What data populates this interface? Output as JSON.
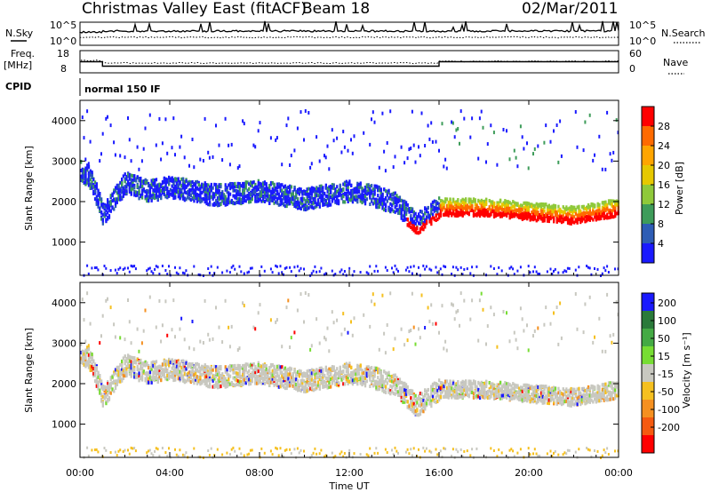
{
  "header": {
    "title": "Christmas Valley East (fitACF)",
    "beam": "Beam 18",
    "date": "02/Mar/2011"
  },
  "top_panels": {
    "nsky_label": "N.Sky",
    "nsearch_label": "N.Search",
    "noise_ticks_left": [
      "10^5",
      "10^0"
    ],
    "noise_ticks_right": [
      "10^5",
      "10^0"
    ],
    "freq_label": "Freq.",
    "freq_unit": "[MHz]",
    "freq_ticks": [
      "18",
      "8"
    ],
    "nave_label": "Nave",
    "nave_ticks": [
      "60",
      "0"
    ],
    "cpid_label": "CPID",
    "cpid_value": "normal 150 IF"
  },
  "panel_power": {
    "ylabel": "Slant Range [km]",
    "yticks": [
      "4000",
      "3000",
      "2000",
      "1000"
    ],
    "colorbar_label": "Power [dB]",
    "colorbar_ticks": [
      "28",
      "24",
      "20",
      "16",
      "12",
      "8",
      "4"
    ],
    "colors": [
      "#ff0000",
      "#ff6a00",
      "#ffa500",
      "#e6c800",
      "#8fc93a",
      "#3e9c5a",
      "#2e5db5",
      "#1a1aff"
    ]
  },
  "panel_velocity": {
    "ylabel": "Slant Range [km]",
    "yticks": [
      "4000",
      "3000",
      "2000",
      "1000"
    ],
    "colorbar_label": "Velocity [m s⁻¹]",
    "colorbar_ticks": [
      "200",
      "100",
      "50",
      "15",
      "-15",
      "-50",
      "-100",
      "-200"
    ],
    "colors": [
      "#1a1aff",
      "#2a7a3a",
      "#44aa44",
      "#77dd33",
      "#c8c8c0",
      "#f5c020",
      "#f59020",
      "#f55a10",
      "#ff0000"
    ]
  },
  "x_axis": {
    "label": "Time UT",
    "ticks": [
      "00:00",
      "04:00",
      "08:00",
      "12:00",
      "16:00",
      "20:00",
      "00:00"
    ]
  },
  "chart_data": [
    {
      "type": "line",
      "title": "Freq. [MHz]",
      "x_label": "Time UT",
      "x": [
        0,
        1,
        1,
        16,
        16,
        24
      ],
      "series": [
        {
          "name": "Freq.",
          "values": [
            13,
            13,
            11,
            11,
            13,
            13
          ]
        }
      ],
      "ylim": [
        8,
        18
      ]
    },
    {
      "type": "heatmap",
      "title": "Power [dB]",
      "xlabel": "Time UT",
      "ylabel": "Slant Range [km]",
      "xlim": [
        0,
        24
      ],
      "ylim": [
        180,
        4500
      ],
      "clim": [
        0,
        30
      ],
      "echo_band_center_km": {
        "x": [
          0,
          0.5,
          1,
          1.5,
          2,
          3,
          4,
          6,
          8,
          10,
          12,
          13,
          14,
          15,
          16,
          18,
          20,
          22,
          24
        ],
        "y": [
          2800,
          2600,
          1700,
          2100,
          2500,
          2300,
          2400,
          2200,
          2300,
          2100,
          2300,
          2200,
          2000,
          1500,
          1900,
          1900,
          1800,
          1700,
          1900
        ]
      }
    },
    {
      "type": "heatmap",
      "title": "Velocity [m s⁻¹]",
      "xlabel": "Time UT",
      "ylabel": "Slant Range [km]",
      "xlim": [
        0,
        24
      ],
      "ylim": [
        180,
        4500
      ],
      "clim": [
        -200,
        200
      ]
    }
  ]
}
